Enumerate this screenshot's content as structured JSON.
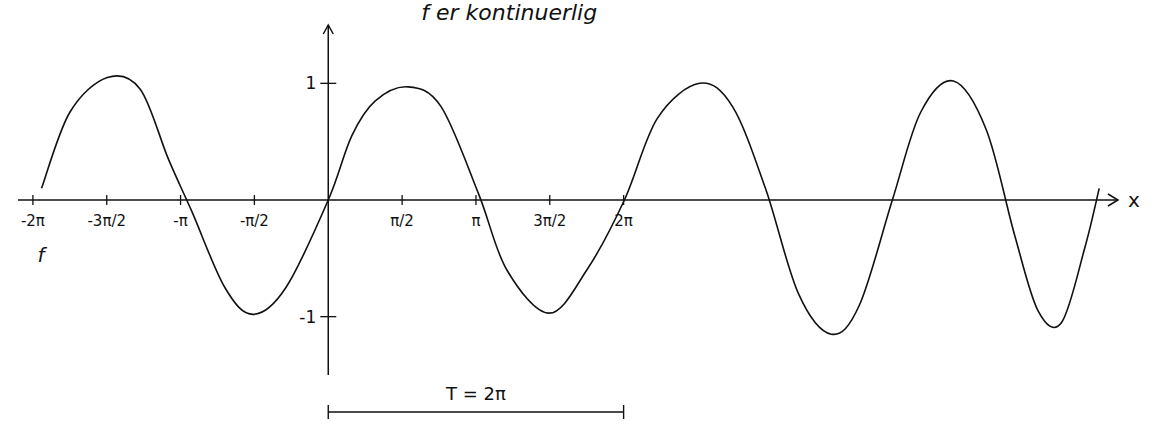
{
  "chart_data": {
    "type": "line",
    "title": "f er kontinuerlig",
    "x_label": "x",
    "series": [
      {
        "name": "f",
        "color": "#111111",
        "line_style": "solid",
        "x": [
          -6.1,
          -5.5,
          -4.7,
          -4.0,
          -3.4,
          -2.9,
          -2.2,
          -1.6,
          -0.9,
          0,
          0.5,
          1.0,
          1.7,
          2.4,
          3.2,
          3.8,
          4.7,
          5.5,
          6.3,
          7.0,
          7.9,
          8.6,
          9.3,
          10.0,
          10.7,
          11.3,
          12.0,
          12.6,
          13.3,
          14.0,
          14.6,
          15.1,
          15.6,
          16.1,
          16.4
        ],
        "values": [
          0.1,
          0.75,
          1.05,
          0.95,
          0.35,
          -0.1,
          -0.75,
          -0.98,
          -0.75,
          0,
          0.55,
          0.85,
          0.97,
          0.8,
          0.05,
          -0.6,
          -0.97,
          -0.6,
          0,
          0.7,
          1.0,
          0.8,
          0.1,
          -0.8,
          -1.15,
          -0.9,
          0,
          0.75,
          1.02,
          0.6,
          -0.3,
          -0.95,
          -1.05,
          -0.4,
          0.1
        ]
      }
    ],
    "xlim": [
      -6.6,
      16.8
    ],
    "ylim": [
      -1.5,
      1.5
    ],
    "xticks": [
      {
        "value": -6.283,
        "label": "-2π"
      },
      {
        "value": -4.712,
        "label": "-3π/2"
      },
      {
        "value": -3.142,
        "label": "-π"
      },
      {
        "value": -1.571,
        "label": "-π/2"
      },
      {
        "value": 1.571,
        "label": "π/2"
      },
      {
        "value": 3.142,
        "label": "π"
      },
      {
        "value": 4.712,
        "label": "3π/2"
      },
      {
        "value": 6.283,
        "label": "2π"
      }
    ],
    "yticks": [
      1,
      -1
    ],
    "annotations": [
      {
        "text": "T = 2π",
        "x_start": 0,
        "x_end": 6.283
      }
    ],
    "grid": false
  }
}
